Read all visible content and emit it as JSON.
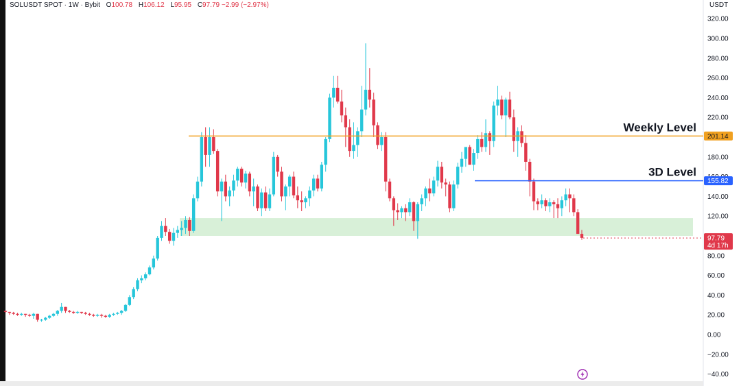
{
  "header": {
    "symbol": "SOLUSDT SPOT · 1W · Bybit",
    "open_label": "O",
    "open": "100.78",
    "high_label": "H",
    "high": "106.12",
    "low_label": "L",
    "low": "95.95",
    "close_label": "C",
    "close": "97.79",
    "change": "−2.99 (−2.97%)"
  },
  "currency": "USDT",
  "annotations": {
    "weekly_label": "Weekly Level",
    "weekly_value": "201.14",
    "d3_label": "3D Level",
    "d3_value": "155.82",
    "last_price": "97.79",
    "countdown": "4d 17h"
  },
  "colors": {
    "up": "#26c6da",
    "down": "#e0384a",
    "weekly_line": "#f0a020",
    "d3_line": "#2962ff",
    "zone": "#d8f0d8",
    "last_badge": "#e0384a"
  },
  "chart_data": {
    "type": "candlestick",
    "title": "SOLUSDT SPOT · 1W · Bybit",
    "ylabel": "USDT",
    "ylim": [
      -40,
      330
    ],
    "yticks": [
      "320.00",
      "300.00",
      "280.00",
      "260.00",
      "240.00",
      "220.00",
      "200.00",
      "180.00",
      "160.00",
      "140.00",
      "120.00",
      "100.00",
      "80.00",
      "60.00",
      "40.00",
      "20.00",
      "0.00",
      "−20.00",
      "−40.00"
    ],
    "ytick_values": [
      320,
      300,
      280,
      260,
      240,
      220,
      200,
      180,
      160,
      140,
      120,
      100,
      80,
      60,
      40,
      20,
      0,
      -20,
      -40
    ],
    "levels": [
      {
        "name": "Weekly Level",
        "value": 201.14
      },
      {
        "name": "3D Level",
        "value": 155.82
      }
    ],
    "zone": {
      "low": 100,
      "high": 118
    },
    "last_price": 97.79,
    "candles": [
      [
        24,
        24,
        22,
        23
      ],
      [
        23,
        23,
        20,
        22
      ],
      [
        22,
        23,
        20,
        21
      ],
      [
        21,
        22,
        19,
        20
      ],
      [
        20,
        22,
        19,
        21
      ],
      [
        21,
        21,
        18,
        20
      ],
      [
        20,
        21,
        18,
        19
      ],
      [
        19,
        22,
        16,
        21
      ],
      [
        21,
        21,
        13,
        15
      ],
      [
        15,
        16,
        13,
        15
      ],
      [
        15,
        18,
        14,
        17
      ],
      [
        17,
        20,
        16,
        19
      ],
      [
        19,
        22,
        18,
        21
      ],
      [
        21,
        25,
        19,
        24
      ],
      [
        24,
        32,
        22,
        28
      ],
      [
        28,
        28,
        22,
        24
      ],
      [
        24,
        25,
        22,
        23
      ],
      [
        23,
        24,
        21,
        22
      ],
      [
        22,
        24,
        21,
        23
      ],
      [
        23,
        23,
        21,
        22
      ],
      [
        22,
        23,
        20,
        21
      ],
      [
        21,
        22,
        19,
        20
      ],
      [
        20,
        21,
        18,
        19
      ],
      [
        19,
        21,
        18,
        20
      ],
      [
        20,
        21,
        17,
        19
      ],
      [
        19,
        20,
        17,
        18
      ],
      [
        18,
        21,
        17,
        20
      ],
      [
        20,
        22,
        19,
        21
      ],
      [
        21,
        23,
        20,
        22
      ],
      [
        22,
        25,
        20,
        24
      ],
      [
        24,
        31,
        23,
        30
      ],
      [
        30,
        40,
        29,
        38
      ],
      [
        38,
        48,
        36,
        46
      ],
      [
        46,
        57,
        44,
        55
      ],
      [
        55,
        60,
        52,
        57
      ],
      [
        57,
        63,
        55,
        61
      ],
      [
        61,
        70,
        60,
        68
      ],
      [
        68,
        80,
        66,
        77
      ],
      [
        77,
        100,
        75,
        98
      ],
      [
        98,
        115,
        95,
        110
      ],
      [
        110,
        118,
        100,
        104
      ],
      [
        104,
        107,
        92,
        95
      ],
      [
        95,
        108,
        90,
        103
      ],
      [
        103,
        110,
        98,
        106
      ],
      [
        106,
        115,
        100,
        108
      ],
      [
        108,
        120,
        102,
        116
      ],
      [
        116,
        119,
        100,
        105
      ],
      [
        105,
        142,
        103,
        138
      ],
      [
        138,
        160,
        135,
        155
      ],
      [
        155,
        205,
        150,
        200
      ],
      [
        200,
        210,
        170,
        182
      ],
      [
        182,
        210,
        170,
        200
      ],
      [
        200,
        208,
        183,
        186
      ],
      [
        186,
        188,
        140,
        145
      ],
      [
        145,
        158,
        115,
        155
      ],
      [
        155,
        162,
        135,
        140
      ],
      [
        140,
        150,
        130,
        146
      ],
      [
        146,
        162,
        140,
        156
      ],
      [
        156,
        170,
        150,
        168
      ],
      [
        168,
        170,
        150,
        154
      ],
      [
        154,
        166,
        148,
        163
      ],
      [
        163,
        165,
        140,
        145
      ],
      [
        145,
        158,
        130,
        150
      ],
      [
        150,
        152,
        125,
        128
      ],
      [
        128,
        148,
        120,
        144
      ],
      [
        144,
        150,
        125,
        128
      ],
      [
        128,
        148,
        125,
        142
      ],
      [
        142,
        185,
        140,
        180
      ],
      [
        180,
        182,
        160,
        165
      ],
      [
        165,
        170,
        135,
        140
      ],
      [
        140,
        152,
        126,
        150
      ],
      [
        150,
        162,
        140,
        160
      ],
      [
        160,
        165,
        138,
        141
      ],
      [
        141,
        150,
        128,
        136
      ],
      [
        136,
        145,
        125,
        134
      ],
      [
        134,
        140,
        128,
        138
      ],
      [
        138,
        150,
        130,
        146
      ],
      [
        146,
        162,
        140,
        158
      ],
      [
        158,
        162,
        145,
        148
      ],
      [
        148,
        175,
        145,
        172
      ],
      [
        172,
        200,
        165,
        198
      ],
      [
        198,
        244,
        195,
        240
      ],
      [
        240,
        262,
        230,
        250
      ],
      [
        250,
        262,
        234,
        236
      ],
      [
        236,
        248,
        215,
        222
      ],
      [
        222,
        230,
        190,
        210
      ],
      [
        210,
        218,
        180,
        186
      ],
      [
        186,
        215,
        178,
        192
      ],
      [
        192,
        210,
        180,
        206
      ],
      [
        206,
        252,
        200,
        228
      ],
      [
        228,
        295,
        222,
        248
      ],
      [
        248,
        270,
        230,
        238
      ],
      [
        238,
        245,
        200,
        212
      ],
      [
        212,
        215,
        188,
        192
      ],
      [
        192,
        205,
        186,
        200
      ],
      [
        200,
        205,
        145,
        155
      ],
      [
        155,
        158,
        135,
        138
      ],
      [
        138,
        140,
        110,
        126
      ],
      [
        126,
        133,
        116,
        124
      ],
      [
        124,
        130,
        118,
        128
      ],
      [
        128,
        132,
        115,
        124
      ],
      [
        124,
        138,
        120,
        134
      ],
      [
        134,
        135,
        105,
        115
      ],
      [
        115,
        134,
        97,
        132
      ],
      [
        132,
        142,
        125,
        138
      ],
      [
        138,
        150,
        130,
        148
      ],
      [
        148,
        158,
        135,
        143
      ],
      [
        143,
        160,
        140,
        156
      ],
      [
        156,
        176,
        150,
        170
      ],
      [
        170,
        175,
        148,
        154
      ],
      [
        154,
        158,
        140,
        152
      ],
      [
        152,
        155,
        124,
        128
      ],
      [
        128,
        156,
        125,
        152
      ],
      [
        152,
        174,
        148,
        170
      ],
      [
        170,
        185,
        164,
        178
      ],
      [
        178,
        188,
        170,
        190
      ],
      [
        190,
        192,
        172,
        172
      ],
      [
        172,
        188,
        166,
        184
      ],
      [
        184,
        202,
        178,
        198
      ],
      [
        198,
        205,
        185,
        190
      ],
      [
        190,
        218,
        185,
        204
      ],
      [
        204,
        206,
        182,
        196
      ],
      [
        196,
        236,
        190,
        232
      ],
      [
        232,
        252,
        222,
        238
      ],
      [
        238,
        242,
        218,
        222
      ],
      [
        222,
        240,
        200,
        238
      ],
      [
        238,
        246,
        218,
        220
      ],
      [
        220,
        228,
        185,
        196
      ],
      [
        196,
        210,
        180,
        206
      ],
      [
        206,
        212,
        190,
        194
      ],
      [
        194,
        202,
        166,
        175
      ],
      [
        175,
        178,
        140,
        155
      ],
      [
        155,
        158,
        126,
        135
      ],
      [
        135,
        138,
        126,
        132
      ],
      [
        132,
        142,
        128,
        136
      ],
      [
        136,
        138,
        125,
        130
      ],
      [
        130,
        138,
        124,
        134
      ],
      [
        134,
        136,
        118,
        132
      ],
      [
        132,
        138,
        118,
        128
      ],
      [
        128,
        140,
        120,
        136
      ],
      [
        136,
        148,
        130,
        142
      ],
      [
        142,
        148,
        124,
        138
      ],
      [
        138,
        142,
        120,
        124
      ],
      [
        124,
        127,
        105,
        102
      ],
      [
        102,
        106,
        96,
        98
      ]
    ]
  }
}
